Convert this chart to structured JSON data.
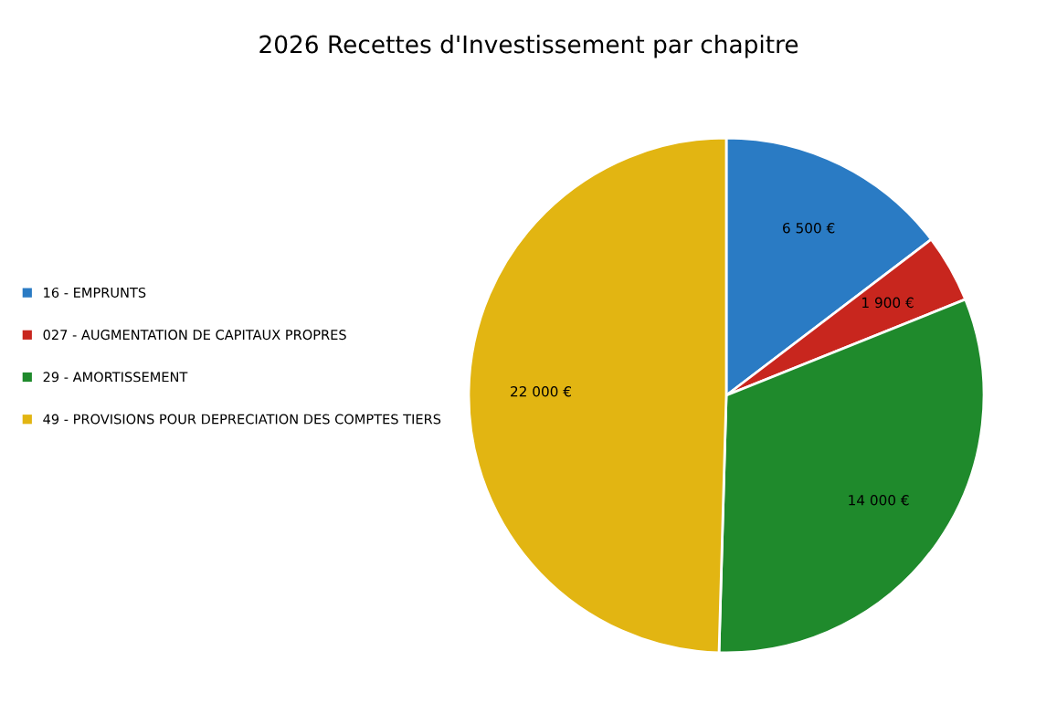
{
  "chart_data": {
    "type": "pie",
    "title": "2026 Recettes d'Investissement par chapitre",
    "categories": [
      "16 - EMPRUNTS",
      "027 - AUGMENTATION DE CAPITAUX PROPRES",
      "29 - AMORTISSEMENT",
      "49 - PROVISIONS POUR DEPRECIATION DES COMPTES TIERS"
    ],
    "values": [
      6500,
      1900,
      14000,
      22000
    ],
    "value_labels": [
      "6 500 €",
      "1 900 €",
      "14 000 €",
      "22 000 €"
    ],
    "colors": [
      "#2a7bc4",
      "#c8261e",
      "#1f8a2c",
      "#e2b512"
    ],
    "legend": "left"
  }
}
